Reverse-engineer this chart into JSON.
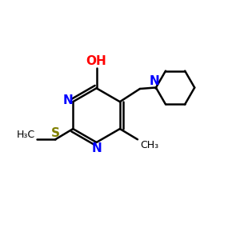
{
  "background_color": "#ffffff",
  "bond_color": "#000000",
  "N_color": "#0000ff",
  "O_color": "#ff0000",
  "S_color": "#808000",
  "figsize": [
    3.0,
    3.0
  ],
  "dpi": 100,
  "xlim": [
    0,
    10
  ],
  "ylim": [
    0,
    10
  ]
}
